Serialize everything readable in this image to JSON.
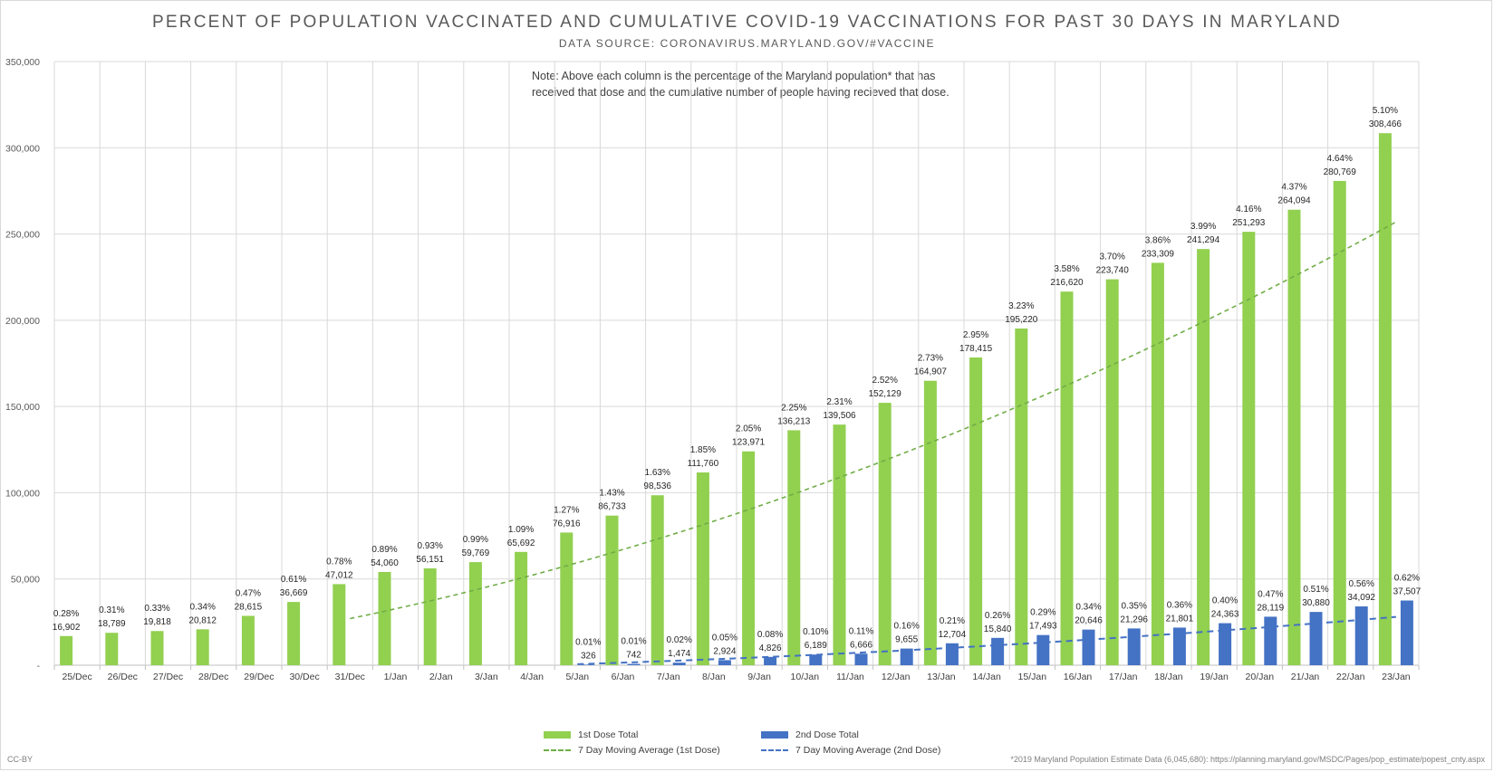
{
  "chart_data": {
    "type": "bar",
    "title": "PERCENT OF POPULATION VACCINATED AND CUMULATIVE COVID-19 VACCINATIONS FOR PAST 30 DAYS IN MARYLAND",
    "subtitle": "DATA SOURCE: CORONAVIRUS.MARYLAND.GOV/#VACCINE",
    "note": "Note: Above each column is the percentage of the Maryland population* that has received that dose and the cumulative number of people having recieved that dose.",
    "footnote": "*2019 Maryland Population Estimate Data (6,045,680): https://planning.maryland.gov/MSDC/Pages/pop_estimate/popest_cnty.aspx",
    "license": "CC-BY",
    "ylim": [
      0,
      350000
    ],
    "yticks": [
      "-",
      "50,000",
      "100,000",
      "150,000",
      "200,000",
      "250,000",
      "300,000",
      "350,000"
    ],
    "ytick_values": [
      0,
      50000,
      100000,
      150000,
      200000,
      250000,
      300000,
      350000
    ],
    "categories": [
      "25/Dec",
      "26/Dec",
      "27/Dec",
      "28/Dec",
      "29/Dec",
      "30/Dec",
      "31/Dec",
      "1/Jan",
      "2/Jan",
      "3/Jan",
      "4/Jan",
      "5/Jan",
      "6/Jan",
      "7/Jan",
      "8/Jan",
      "9/Jan",
      "10/Jan",
      "11/Jan",
      "12/Jan",
      "13/Jan",
      "14/Jan",
      "15/Jan",
      "16/Jan",
      "17/Jan",
      "18/Jan",
      "19/Jan",
      "20/Jan",
      "21/Jan",
      "22/Jan",
      "23/Jan"
    ],
    "series": [
      {
        "name": "1st Dose Total",
        "color": "#92d050",
        "values": [
          16902,
          18789,
          19818,
          20812,
          28615,
          36669,
          47012,
          54060,
          56151,
          59769,
          65692,
          76916,
          86733,
          98536,
          111760,
          123971,
          136213,
          139506,
          152129,
          164907,
          178415,
          195220,
          216620,
          223740,
          233309,
          241294,
          251293,
          264094,
          280769,
          308466
        ],
        "value_labels": [
          "16,902",
          "18,789",
          "19,818",
          "20,812",
          "28,615",
          "36,669",
          "47,012",
          "54,060",
          "56,151",
          "59,769",
          "65,692",
          "76,916",
          "86,733",
          "98,536",
          "111,760",
          "123,971",
          "136,213",
          "139,506",
          "152,129",
          "164,907",
          "178,415",
          "195,220",
          "216,620",
          "223,740",
          "233,309",
          "241,294",
          "251,293",
          "264,094",
          "280,769",
          "308,466"
        ],
        "pct_labels": [
          "0.28%",
          "0.31%",
          "0.33%",
          "0.34%",
          "0.47%",
          "0.61%",
          "0.78%",
          "0.89%",
          "0.93%",
          "0.99%",
          "1.09%",
          "1.27%",
          "1.43%",
          "1.63%",
          "1.85%",
          "2.05%",
          "2.25%",
          "2.31%",
          "2.52%",
          "2.73%",
          "2.95%",
          "3.23%",
          "3.58%",
          "3.70%",
          "3.86%",
          "3.99%",
          "4.16%",
          "4.37%",
          "4.64%",
          "5.10%"
        ]
      },
      {
        "name": "2nd Dose Total",
        "color": "#4472c4",
        "values": [
          null,
          null,
          null,
          null,
          null,
          null,
          null,
          null,
          null,
          null,
          null,
          326,
          742,
          1474,
          2924,
          4826,
          6189,
          6666,
          9655,
          12704,
          15840,
          17493,
          20646,
          21296,
          21801,
          24363,
          28119,
          30880,
          34092,
          37507
        ],
        "value_labels": [
          "",
          "",
          "",
          "",
          "",
          "",
          "",
          "",
          "",
          "",
          "",
          "326",
          "742",
          "1,474",
          "2,924",
          "4,826",
          "6,189",
          "6,666",
          "9,655",
          "12,704",
          "15,840",
          "17,493",
          "20,646",
          "21,296",
          "21,801",
          "24,363",
          "28,119",
          "30,880",
          "34,092",
          "37,507"
        ],
        "pct_labels": [
          "",
          "",
          "",
          "",
          "",
          "",
          "",
          "",
          "",
          "",
          "",
          "0.01%",
          "0.01%",
          "0.02%",
          "0.05%",
          "0.08%",
          "0.10%",
          "0.11%",
          "0.16%",
          "0.21%",
          "0.26%",
          "0.29%",
          "0.34%",
          "0.35%",
          "0.36%",
          "0.40%",
          "0.47%",
          "0.51%",
          "0.56%",
          "0.62%"
        ]
      }
    ],
    "trendlines": [
      {
        "name": "7 Day Moving Average (1st Dose)",
        "color": "#70ad47",
        "style": "dashed",
        "start_category": "31/Dec",
        "end_category": "23/Jan",
        "start_value": 27000,
        "end_value": 257000,
        "curve": "smooth-increasing"
      },
      {
        "name": "7 Day Moving Average (2nd Dose)",
        "color": "#4472c4",
        "style": "dashed",
        "start_category": "5/Jan",
        "end_category": "23/Jan",
        "start_value": 600,
        "end_value": 28000,
        "curve": "smooth-increasing"
      }
    ],
    "grid": true,
    "legend": "bottom-center"
  }
}
